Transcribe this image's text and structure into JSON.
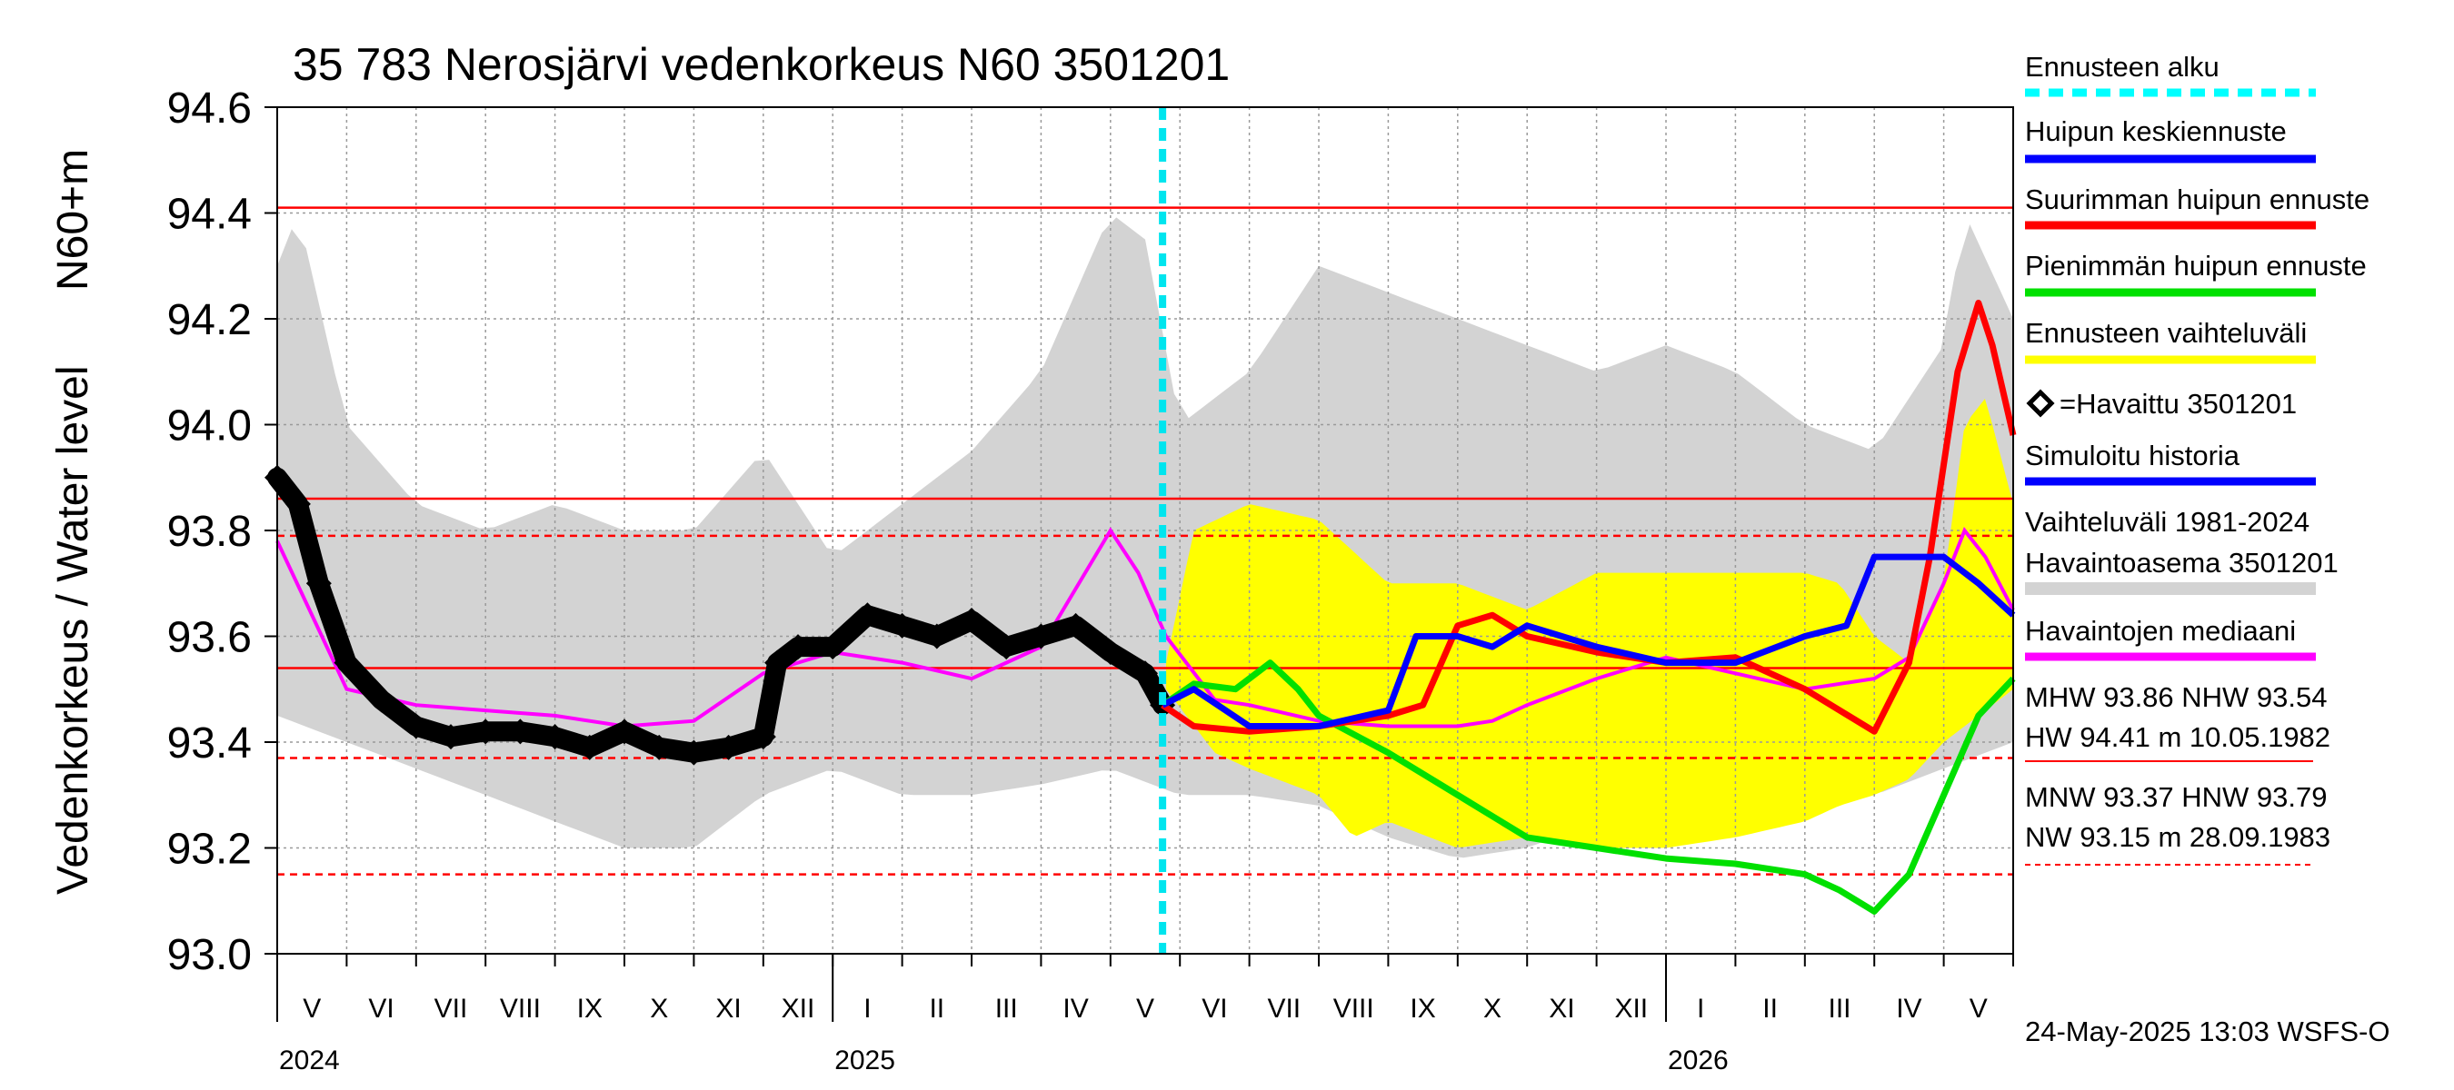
{
  "chart_data": {
    "type": "line",
    "title": "35 783 Nerosjärvi vedenkorkeus N60 3501201",
    "ylabel_left": "Vedenkorkeus / Water level",
    "ylabel_unit": "N60+m",
    "ylim": [
      93.0,
      94.6
    ],
    "y_ticks": [
      "93.0",
      "93.2",
      "93.4",
      "93.6",
      "93.8",
      "94.0",
      "94.2",
      "94.4",
      "94.6"
    ],
    "x_range_months": [
      0,
      25
    ],
    "month_labels": [
      {
        "m": 0.5,
        "label": "V"
      },
      {
        "m": 1.5,
        "label": "VI"
      },
      {
        "m": 2.5,
        "label": "VII"
      },
      {
        "m": 3.5,
        "label": "VIII"
      },
      {
        "m": 4.5,
        "label": "IX"
      },
      {
        "m": 5.5,
        "label": "X"
      },
      {
        "m": 6.5,
        "label": "XI"
      },
      {
        "m": 7.5,
        "label": "XII"
      },
      {
        "m": 8.5,
        "label": "I"
      },
      {
        "m": 9.5,
        "label": "II"
      },
      {
        "m": 10.5,
        "label": "III"
      },
      {
        "m": 11.5,
        "label": "IV"
      },
      {
        "m": 12.5,
        "label": "V"
      },
      {
        "m": 13.5,
        "label": "VI"
      },
      {
        "m": 14.5,
        "label": "VII"
      },
      {
        "m": 15.5,
        "label": "VIII"
      },
      {
        "m": 16.5,
        "label": "IX"
      },
      {
        "m": 17.5,
        "label": "X"
      },
      {
        "m": 18.5,
        "label": "XI"
      },
      {
        "m": 19.5,
        "label": "XII"
      },
      {
        "m": 20.5,
        "label": "I"
      },
      {
        "m": 21.5,
        "label": "II"
      },
      {
        "m": 22.5,
        "label": "III"
      },
      {
        "m": 23.5,
        "label": "IV"
      },
      {
        "m": 24.5,
        "label": "V"
      }
    ],
    "year_labels": [
      {
        "m": 0,
        "label": "2024"
      },
      {
        "m": 8,
        "label": "2025"
      },
      {
        "m": 20,
        "label": "2026"
      }
    ],
    "forecast_start_month": 12.75,
    "reference_lines": [
      {
        "name": "HW",
        "value": 94.41,
        "style": "solid"
      },
      {
        "name": "MHW",
        "value": 93.86,
        "style": "solid"
      },
      {
        "name": "HNW",
        "value": 93.79,
        "style": "dashed"
      },
      {
        "name": "NHW",
        "value": 93.54,
        "style": "solid"
      },
      {
        "name": "MNW",
        "value": 93.37,
        "style": "dashed"
      },
      {
        "name": "NW",
        "value": 93.15,
        "style": "dashed"
      }
    ],
    "series": [
      {
        "name": "Vaihteluväli 1981-2024 Havaintoasema 3501201 (max)",
        "color": "#d3d3d3",
        "x": [
          0,
          0.3,
          1,
          2,
          3,
          4,
          5,
          6,
          7,
          8,
          9,
          10,
          11,
          12,
          12.5,
          13,
          14,
          15,
          16,
          17,
          18,
          19,
          20,
          21,
          22,
          23,
          24,
          24.3,
          25
        ],
        "values": [
          94.3,
          94.4,
          94.0,
          93.85,
          93.8,
          93.85,
          93.8,
          93.8,
          93.95,
          93.75,
          93.85,
          93.95,
          94.1,
          94.4,
          94.35,
          94.0,
          94.1,
          94.3,
          94.25,
          94.2,
          94.15,
          94.1,
          94.15,
          94.1,
          94.0,
          93.95,
          94.15,
          94.4,
          94.2
        ]
      },
      {
        "name": "Vaihteluväli 1981-2024 Havaintoasema 3501201 (min)",
        "color": "#d3d3d3",
        "x": [
          0,
          1,
          2,
          3,
          4,
          5,
          6,
          7,
          8,
          9,
          10,
          11,
          12,
          13,
          14,
          15,
          16,
          17,
          18,
          19,
          20,
          21,
          22,
          23,
          24,
          25
        ],
        "values": [
          93.45,
          93.4,
          93.35,
          93.3,
          93.25,
          93.2,
          93.2,
          93.3,
          93.35,
          93.3,
          93.3,
          93.32,
          93.35,
          93.3,
          93.3,
          93.28,
          93.22,
          93.18,
          93.2,
          93.25,
          93.3,
          93.32,
          93.3,
          93.3,
          93.35,
          93.4
        ]
      },
      {
        "name": "Ennusteen vaihteluväli (max)",
        "color": "#ffff00",
        "x": [
          12.8,
          13.2,
          14,
          15,
          16,
          17,
          18,
          19,
          20,
          21,
          22,
          22.5,
          23,
          23.5,
          24,
          24.3,
          24.6,
          25
        ],
        "values": [
          93.55,
          93.8,
          93.85,
          93.82,
          93.7,
          93.7,
          93.65,
          93.72,
          93.72,
          93.72,
          93.72,
          93.7,
          93.6,
          93.55,
          93.7,
          94.0,
          94.05,
          93.85
        ]
      },
      {
        "name": "Ennusteen vaihteluväli (min)",
        "color": "#ffff00",
        "x": [
          12.8,
          13.5,
          14,
          15,
          15.5,
          16,
          17,
          18,
          19,
          20,
          21,
          22,
          22.5,
          23,
          23.5,
          24,
          24.5,
          25
        ],
        "values": [
          93.5,
          93.38,
          93.35,
          93.3,
          93.22,
          93.25,
          93.2,
          93.22,
          93.2,
          93.2,
          93.22,
          93.25,
          93.28,
          93.3,
          93.33,
          93.4,
          93.45,
          93.5
        ]
      },
      {
        "name": "Havaittu 3501201",
        "color": "#000000",
        "x": [
          0,
          0.3,
          0.6,
          1,
          1.5,
          2,
          2.5,
          3,
          3.5,
          4,
          4.5,
          5,
          5.5,
          6,
          6.5,
          7,
          7.2,
          7.5,
          8,
          8.5,
          9,
          9.5,
          10,
          10.5,
          11,
          11.5,
          12,
          12.5,
          12.75
        ],
        "values": [
          93.9,
          93.85,
          93.7,
          93.55,
          93.48,
          93.43,
          93.41,
          93.42,
          93.42,
          93.41,
          93.39,
          93.42,
          93.39,
          93.38,
          93.39,
          93.41,
          93.55,
          93.58,
          93.58,
          93.64,
          93.62,
          93.6,
          93.63,
          93.58,
          93.6,
          93.62,
          93.57,
          93.53,
          93.47
        ]
      },
      {
        "name": "Havaintojen mediaani",
        "color": "#ff00ff",
        "x": [
          0,
          1,
          2,
          3,
          4,
          5,
          6,
          7,
          7.5,
          8,
          9,
          10,
          11,
          12,
          12.4,
          12.8,
          13.5,
          14,
          15,
          16,
          17,
          17.5,
          18,
          19,
          20,
          21,
          22,
          23,
          23.5,
          24,
          24.3,
          24.6,
          25
        ],
        "values": [
          93.78,
          93.5,
          93.47,
          93.46,
          93.45,
          93.43,
          93.44,
          93.53,
          93.55,
          93.57,
          93.55,
          93.52,
          93.58,
          93.8,
          93.72,
          93.6,
          93.48,
          93.47,
          93.44,
          93.43,
          93.43,
          93.44,
          93.47,
          93.52,
          93.56,
          93.53,
          93.5,
          93.52,
          93.56,
          93.7,
          93.8,
          93.75,
          93.65
        ]
      },
      {
        "name": "Suurimman huipun ennuste",
        "color": "#ff0000",
        "x": [
          12.75,
          13.2,
          14,
          15,
          16,
          16.5,
          17,
          17.5,
          18,
          19,
          20,
          21,
          22,
          23,
          23.5,
          23.8,
          24.2,
          24.5,
          24.7,
          25
        ],
        "values": [
          93.47,
          93.43,
          93.42,
          93.43,
          93.45,
          93.47,
          93.62,
          93.64,
          93.6,
          93.57,
          93.55,
          93.56,
          93.5,
          93.42,
          93.55,
          93.75,
          94.1,
          94.23,
          94.15,
          93.98
        ]
      },
      {
        "name": "Huipun keskiennuste",
        "color": "#0000ff",
        "x": [
          12.75,
          13.2,
          14,
          15,
          16,
          16.4,
          17,
          17.5,
          18,
          19,
          20,
          21,
          22,
          22.6,
          23,
          23.5,
          24,
          24.5,
          25
        ],
        "values": [
          93.47,
          93.5,
          93.43,
          93.43,
          93.46,
          93.6,
          93.6,
          93.58,
          93.62,
          93.58,
          93.55,
          93.55,
          93.6,
          93.62,
          93.75,
          93.75,
          93.75,
          93.7,
          93.64
        ]
      },
      {
        "name": "Pienimmän huipun ennuste",
        "color": "#00e000",
        "x": [
          12.75,
          13.2,
          13.8,
          14.3,
          14.7,
          15,
          16,
          17,
          18,
          19,
          20,
          21,
          22,
          22.5,
          23,
          23.5,
          24,
          24.5,
          25
        ],
        "values": [
          93.47,
          93.51,
          93.5,
          93.55,
          93.5,
          93.45,
          93.38,
          93.3,
          93.22,
          93.2,
          93.18,
          93.17,
          93.15,
          93.12,
          93.08,
          93.15,
          93.3,
          93.45,
          93.52
        ]
      }
    ],
    "legend": [
      {
        "label": "Ennusteen alku",
        "color": "#00ffff",
        "style": "dashed"
      },
      {
        "label": "Huipun keskiennuste",
        "color": "#0000ff",
        "style": "solid"
      },
      {
        "label": "Suurimman huipun ennuste",
        "color": "#ff0000",
        "style": "solid"
      },
      {
        "label": "Pienimmän huipun ennuste",
        "color": "#00e000",
        "style": "solid"
      },
      {
        "label": "Ennusteen vaihteluväli",
        "color": "#ffff00",
        "style": "solid"
      },
      {
        "label": "=Havaittu 3501201",
        "color": "#000000",
        "style": "marker"
      },
      {
        "label": "Simuloitu historia",
        "color": "#0000ff",
        "style": "solid"
      },
      {
        "label": "Vaihteluväli 1981-2024",
        "color": "",
        "style": "text"
      },
      {
        "label": " Havaintoasema 3501201",
        "color": "#d3d3d3",
        "style": "solid"
      },
      {
        "label": "Havaintojen mediaani",
        "color": "#ff00ff",
        "style": "solid"
      }
    ],
    "stats": {
      "line1": "MHW  93.86 NHW  93.54",
      "line2": "HW  94.41 m 10.05.1982",
      "line3": "MNW  93.37 HNW  93.79",
      "line4": "NW  93.15 m 28.09.1983"
    },
    "footer": "24-May-2025 13:03 WSFS-O"
  }
}
